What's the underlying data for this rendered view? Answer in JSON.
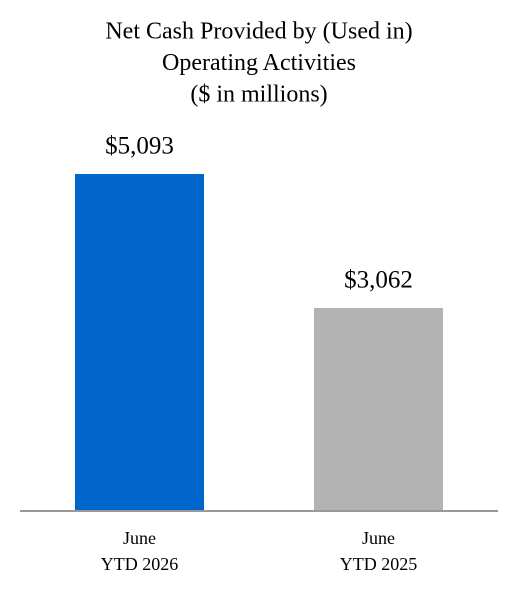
{
  "chart_data": {
    "type": "bar",
    "title": [
      "Net Cash Provided by (Used in)",
      "Operating Activities",
      "($ in millions)"
    ],
    "categories": [
      [
        "June",
        "YTD 2026"
      ],
      [
        "June",
        "YTD 2025"
      ]
    ],
    "values": [
      5093,
      3062
    ],
    "value_labels": [
      "$5,093",
      "$3,062"
    ],
    "colors": [
      "#0066cc",
      "#b3b3b3"
    ]
  }
}
